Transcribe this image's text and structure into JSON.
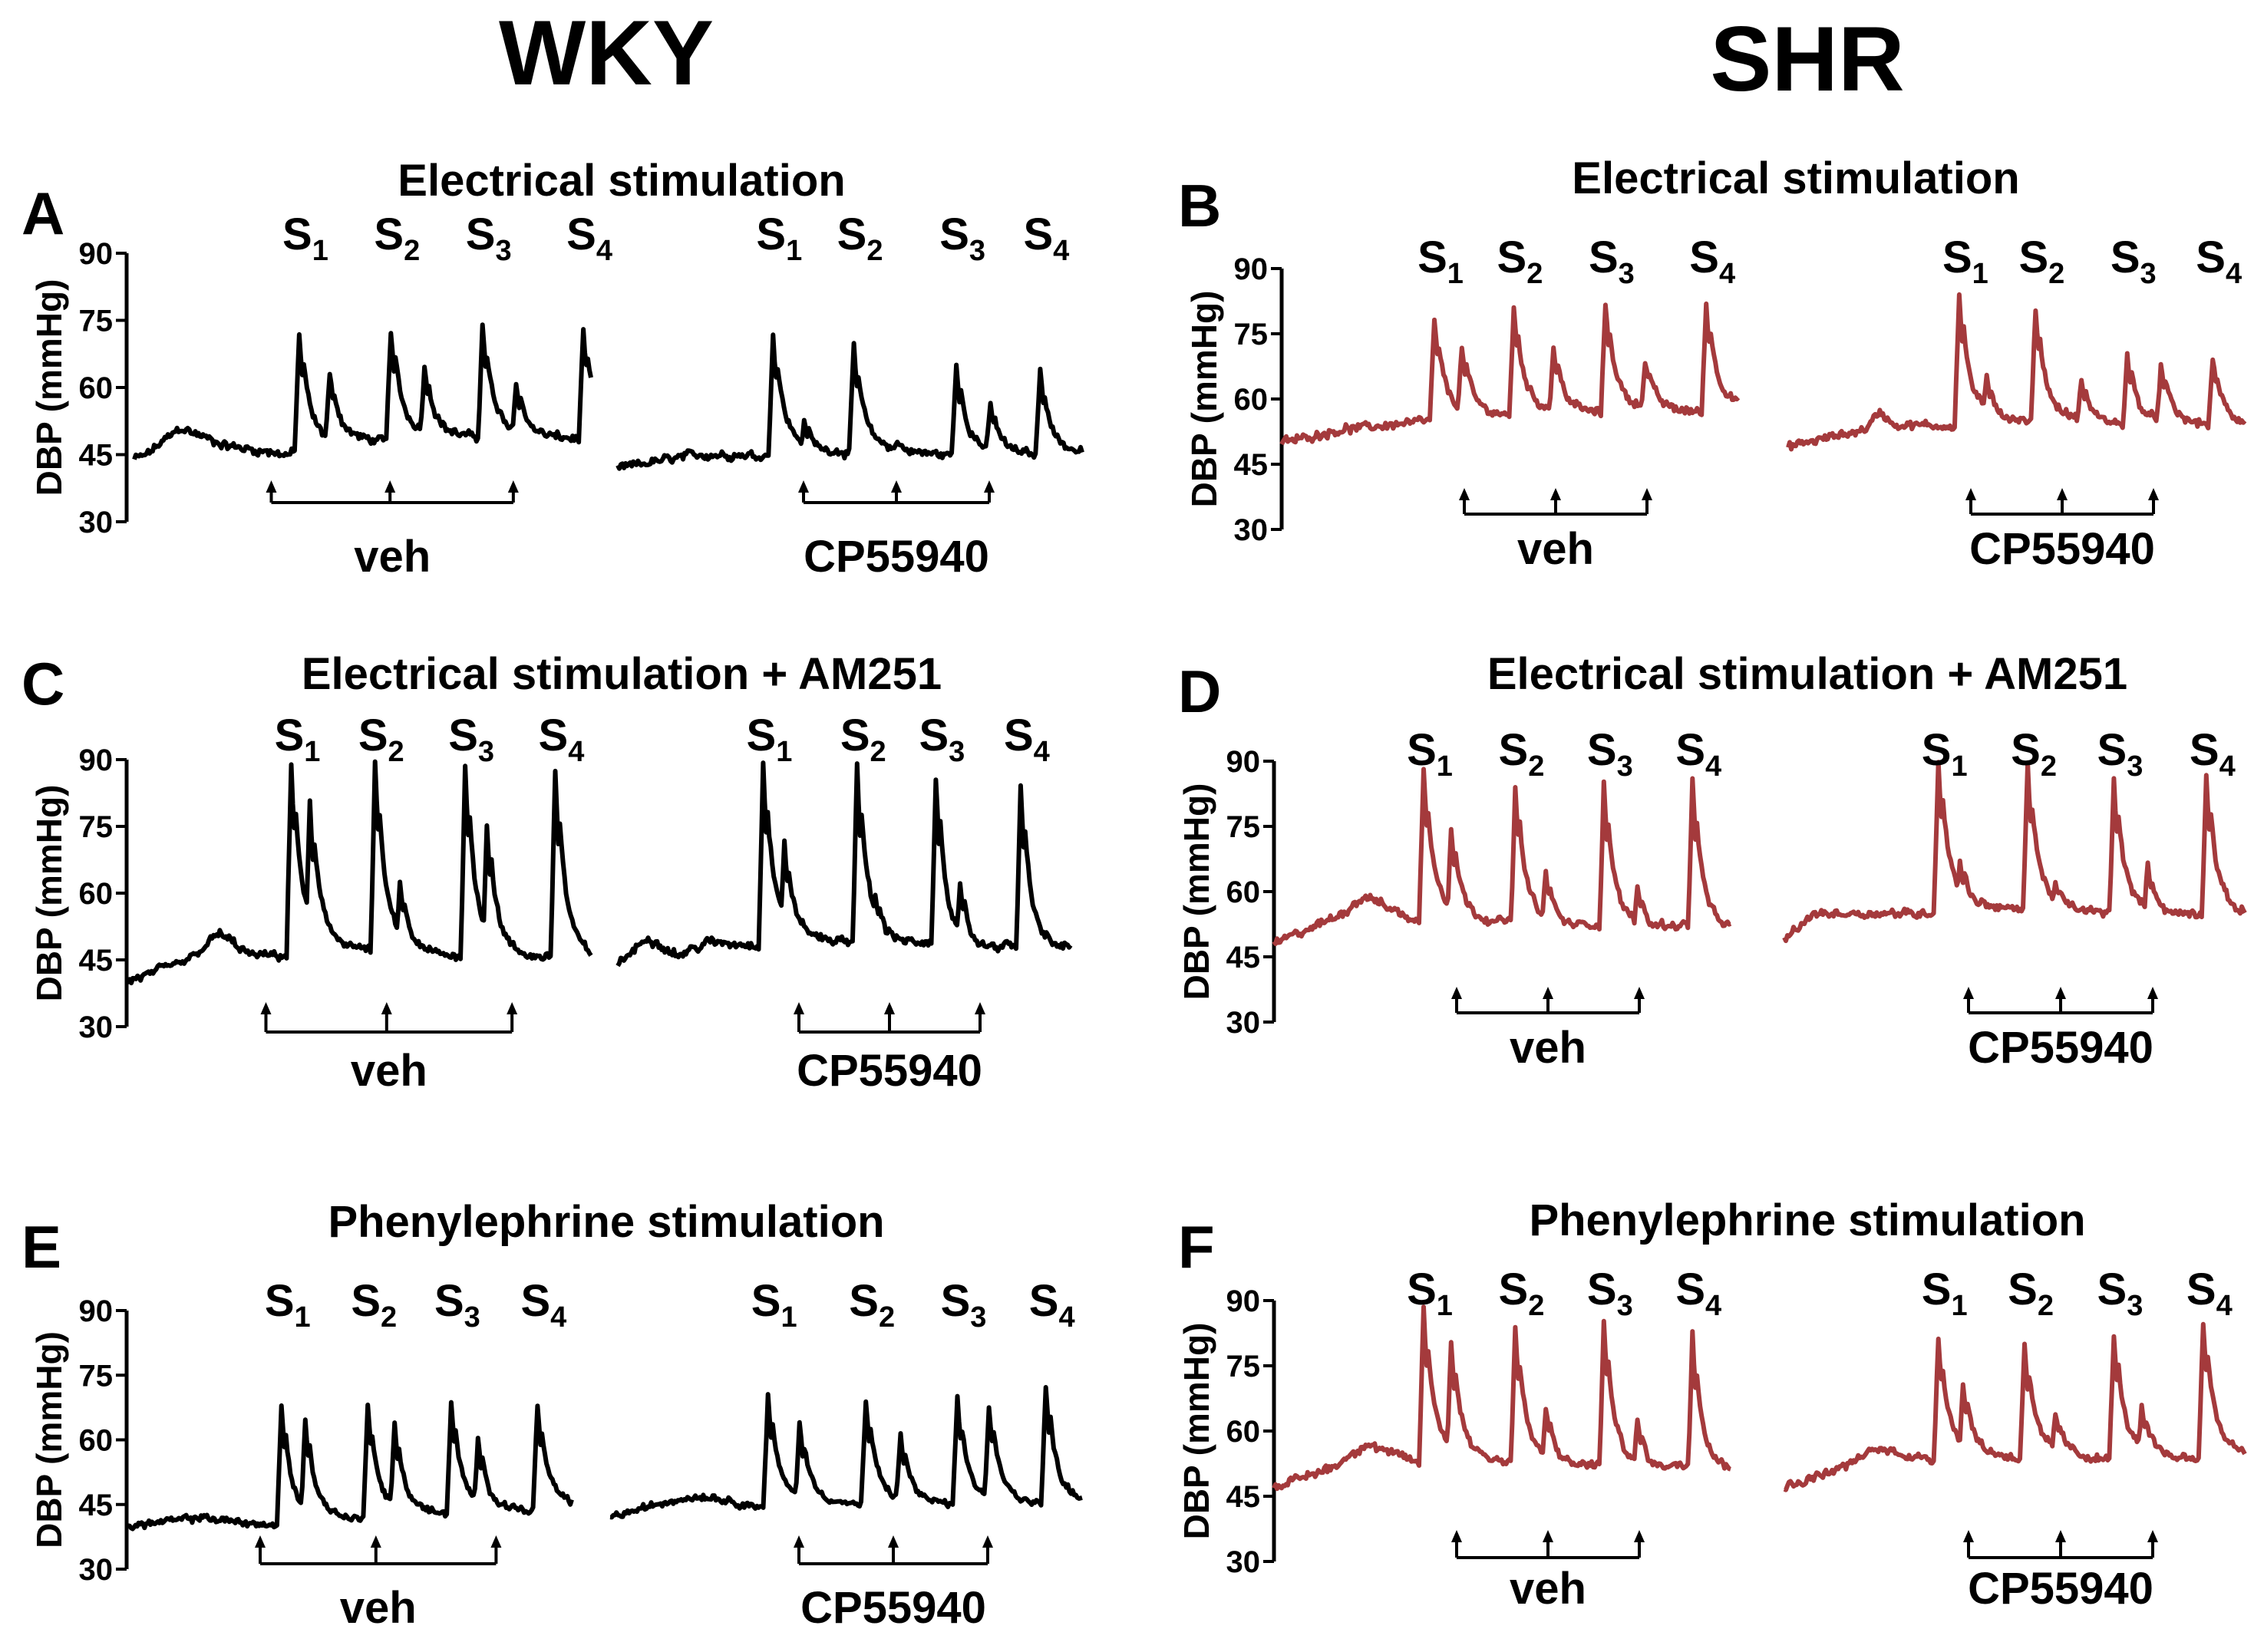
{
  "colors": {
    "wky_trace": "#000000",
    "shr_trace": "#a43a3c",
    "axis": "#000000"
  },
  "group_titles": {
    "left": "WKY",
    "right": "SHR"
  },
  "chart_data": [
    {
      "type": "line",
      "panel": "A",
      "group": "WKY",
      "color": "#000000",
      "title": "Electrical stimulation",
      "ylabel": "DBP (mmHg)",
      "yticks": [
        "90",
        "75",
        "60",
        "45",
        "30"
      ],
      "ylim": [
        30,
        90
      ],
      "stimuli": [
        "S1",
        "S2",
        "S3",
        "S4"
      ],
      "stim_base": "S",
      "stim_subs": [
        "1",
        "2",
        "3",
        "4"
      ],
      "traces": [
        {
          "treatment": "veh",
          "n": 300,
          "noise": 1.2,
          "baseline": [
            [
              0,
              44
            ],
            [
              8,
              45
            ],
            [
              30,
              51
            ],
            [
              60,
              47
            ],
            [
              100,
              45
            ],
            [
              110,
              46
            ],
            [
              140,
              48
            ],
            [
              300,
              48
            ]
          ],
          "spikes": [
            [
              108,
              72
            ],
            [
              128,
              63
            ],
            [
              168,
              73
            ],
            [
              190,
              65
            ],
            [
              228,
              74
            ],
            [
              250,
              61
            ],
            [
              294,
              73
            ]
          ],
          "arrows": [
            0.3,
            0.56,
            0.83
          ]
        },
        {
          "treatment": "CP55940",
          "n": 300,
          "noise": 1.2,
          "baseline": [
            [
              0,
              42
            ],
            [
              50,
              45
            ],
            [
              300,
              44
            ]
          ],
          "spikes": [
            [
              100,
              72
            ],
            [
              120,
              52
            ],
            [
              152,
              69
            ],
            [
              180,
              48
            ],
            [
              218,
              65
            ],
            [
              240,
              56
            ],
            [
              272,
              64
            ]
          ],
          "arrows": [
            0.4,
            0.6,
            0.8
          ]
        }
      ]
    },
    {
      "type": "line",
      "panel": "B",
      "group": "SHR",
      "color": "#a43a3c",
      "title": "Electrical stimulation",
      "ylabel": "DBP (mmHg)",
      "yticks": [
        "90",
        "75",
        "60",
        "45",
        "30"
      ],
      "ylim": [
        30,
        90
      ],
      "stimuli": [
        "S1",
        "S2",
        "S3",
        "S4"
      ],
      "stim_base": "S",
      "stim_subs": [
        "1",
        "2",
        "3",
        "4"
      ],
      "traces": [
        {
          "treatment": "veh",
          "n": 300,
          "noise": 1.2,
          "baseline": [
            [
              0,
              50
            ],
            [
              40,
              53
            ],
            [
              70,
              54
            ],
            [
              95,
              55
            ],
            [
              300,
              57
            ]
          ],
          "spikes": [
            [
              100,
              78
            ],
            [
              118,
              72
            ],
            [
              152,
              81
            ],
            [
              178,
              72
            ],
            [
              212,
              82
            ],
            [
              238,
              69
            ],
            [
              278,
              82
            ]
          ],
          "arrows": [
            0.4,
            0.6,
            0.8
          ]
        },
        {
          "treatment": "CP55940",
          "n": 300,
          "noise": 1.2,
          "baseline": [
            [
              0,
              49
            ],
            [
              50,
              53
            ],
            [
              60,
              57
            ],
            [
              70,
              54
            ],
            [
              300,
              53
            ]
          ],
          "spikes": [
            [
              112,
              84
            ],
            [
              130,
              65
            ],
            [
              162,
              81
            ],
            [
              192,
              64
            ],
            [
              222,
              70
            ],
            [
              244,
              68
            ],
            [
              278,
              69
            ]
          ],
          "arrows": [
            0.4,
            0.6,
            0.8
          ]
        }
      ]
    },
    {
      "type": "line",
      "panel": "C",
      "group": "WKY",
      "color": "#000000",
      "title": "Electrical stimulation + AM251",
      "ylabel": "DBP (mmHg)",
      "yticks": [
        "90",
        "75",
        "60",
        "45",
        "30"
      ],
      "ylim": [
        30,
        90
      ],
      "stimuli": [
        "S1",
        "S2",
        "S3",
        "S4"
      ],
      "stim_base": "S",
      "stim_subs": [
        "1",
        "2",
        "3",
        "4"
      ],
      "traces": [
        {
          "treatment": "veh",
          "n": 300,
          "noise": 1.2,
          "baseline": [
            [
              0,
              40
            ],
            [
              40,
              45
            ],
            [
              60,
              51
            ],
            [
              80,
              46
            ],
            [
              100,
              46
            ],
            [
              300,
              42
            ]
          ],
          "spikes": [
            [
              106,
              89
            ],
            [
              118,
              80
            ],
            [
              160,
              89
            ],
            [
              176,
              62
            ],
            [
              218,
              89
            ],
            [
              232,
              76
            ],
            [
              276,
              88
            ]
          ],
          "arrows": [
            0.3,
            0.56,
            0.83
          ]
        },
        {
          "treatment": "CP55940",
          "n": 300,
          "noise": 1.2,
          "baseline": [
            [
              0,
              44
            ],
            [
              20,
              50
            ],
            [
              40,
              46
            ],
            [
              60,
              49
            ],
            [
              300,
              44
            ]
          ],
          "spikes": [
            [
              96,
              89
            ],
            [
              110,
              71
            ],
            [
              158,
              89
            ],
            [
              170,
              60
            ],
            [
              210,
              86
            ],
            [
              226,
              61
            ],
            [
              266,
              84
            ]
          ],
          "arrows": [
            0.4,
            0.6,
            0.8
          ]
        }
      ]
    },
    {
      "type": "line",
      "panel": "D",
      "group": "SHR",
      "color": "#a43a3c",
      "title": "Electrical stimulation + AM251",
      "ylabel": "DBP (mmHg)",
      "yticks": [
        "90",
        "75",
        "60",
        "45",
        "30"
      ],
      "ylim": [
        30,
        90
      ],
      "stimuli": [
        "S1",
        "S2",
        "S3",
        "S4"
      ],
      "stim_base": "S",
      "stim_subs": [
        "1",
        "2",
        "3",
        "4"
      ],
      "traces": [
        {
          "treatment": "veh",
          "n": 300,
          "noise": 1.2,
          "baseline": [
            [
              0,
              48
            ],
            [
              40,
              54
            ],
            [
              60,
              59
            ],
            [
              100,
              52
            ],
            [
              300,
              48
            ]
          ],
          "spikes": [
            [
              98,
              88
            ],
            [
              116,
              75
            ],
            [
              158,
              84
            ],
            [
              178,
              64
            ],
            [
              216,
              85
            ],
            [
              238,
              61
            ],
            [
              274,
              86
            ]
          ],
          "arrows": [
            0.4,
            0.6,
            0.8
          ]
        },
        {
          "treatment": "CP55940",
          "n": 300,
          "noise": 1.2,
          "baseline": [
            [
              0,
              49
            ],
            [
              20,
              55
            ],
            [
              60,
              55
            ],
            [
              100,
              55
            ],
            [
              300,
              52
            ]
          ],
          "spikes": [
            [
              100,
              90
            ],
            [
              114,
              67
            ],
            [
              158,
              89
            ],
            [
              176,
              62
            ],
            [
              214,
              86
            ],
            [
              236,
              66
            ],
            [
              274,
              87
            ]
          ],
          "arrows": [
            0.4,
            0.6,
            0.8
          ]
        }
      ]
    },
    {
      "type": "line",
      "panel": "E",
      "group": "WKY",
      "color": "#000000",
      "title": "Phenylephrine stimulation",
      "ylabel": "DBP (mmHg)",
      "yticks": [
        "90",
        "75",
        "60",
        "45",
        "30"
      ],
      "ylim": [
        30,
        90
      ],
      "stimuli": [
        "S1",
        "S2",
        "S3",
        "S4"
      ],
      "stim_base": "S",
      "stim_subs": [
        "1",
        "2",
        "3",
        "4"
      ],
      "traces": [
        {
          "treatment": "veh",
          "n": 300,
          "noise": 1.0,
          "baseline": [
            [
              0,
              40
            ],
            [
              50,
              42
            ],
            [
              100,
              40
            ],
            [
              300,
              44
            ]
          ],
          "spikes": [
            [
              104,
              68
            ],
            [
              120,
              65
            ],
            [
              162,
              69
            ],
            [
              180,
              64
            ],
            [
              218,
              69
            ],
            [
              236,
              60
            ],
            [
              276,
              68
            ]
          ],
          "arrows": [
            0.3,
            0.56,
            0.83
          ]
        },
        {
          "treatment": "CP55940",
          "n": 300,
          "noise": 1.0,
          "baseline": [
            [
              0,
              42
            ],
            [
              40,
              46
            ],
            [
              60,
              47
            ],
            [
              100,
              44
            ],
            [
              300,
              44
            ]
          ],
          "spikes": [
            [
              100,
              70
            ],
            [
              120,
              64
            ],
            [
              162,
              69
            ],
            [
              184,
              61
            ],
            [
              220,
              69
            ],
            [
              240,
              68
            ],
            [
              276,
              72
            ]
          ],
          "arrows": [
            0.4,
            0.6,
            0.8
          ]
        }
      ]
    },
    {
      "type": "line",
      "panel": "F",
      "group": "SHR",
      "color": "#a43a3c",
      "title": "Phenylephrine stimulation",
      "ylabel": "DBP (mmHg)",
      "yticks": [
        "90",
        "75",
        "60",
        "45",
        "30"
      ],
      "ylim": [
        30,
        90
      ],
      "stimuli": [
        "S1",
        "S2",
        "S3",
        "S4"
      ],
      "stim_base": "S",
      "stim_subs": [
        "1",
        "2",
        "3",
        "4"
      ],
      "traces": [
        {
          "treatment": "veh",
          "n": 300,
          "noise": 1.2,
          "baseline": [
            [
              0,
              47
            ],
            [
              40,
              52
            ],
            [
              60,
              57
            ],
            [
              100,
              52
            ],
            [
              300,
              48
            ]
          ],
          "spikes": [
            [
              98,
              88
            ],
            [
              116,
              81
            ],
            [
              158,
              84
            ],
            [
              178,
              65
            ],
            [
              216,
              85
            ],
            [
              238,
              62
            ],
            [
              274,
              83
            ]
          ],
          "arrows": [
            0.4,
            0.6,
            0.8
          ]
        },
        {
          "treatment": "CP55940",
          "n": 300,
          "noise": 1.2,
          "baseline": [
            [
              0,
              47
            ],
            [
              40,
              52
            ],
            [
              60,
              56
            ],
            [
              100,
              53
            ],
            [
              300,
              53
            ]
          ],
          "spikes": [
            [
              100,
              82
            ],
            [
              116,
              71
            ],
            [
              156,
              80
            ],
            [
              176,
              64
            ],
            [
              214,
              82
            ],
            [
              232,
              65
            ],
            [
              272,
              86
            ]
          ],
          "arrows": [
            0.4,
            0.6,
            0.8
          ]
        }
      ]
    }
  ]
}
